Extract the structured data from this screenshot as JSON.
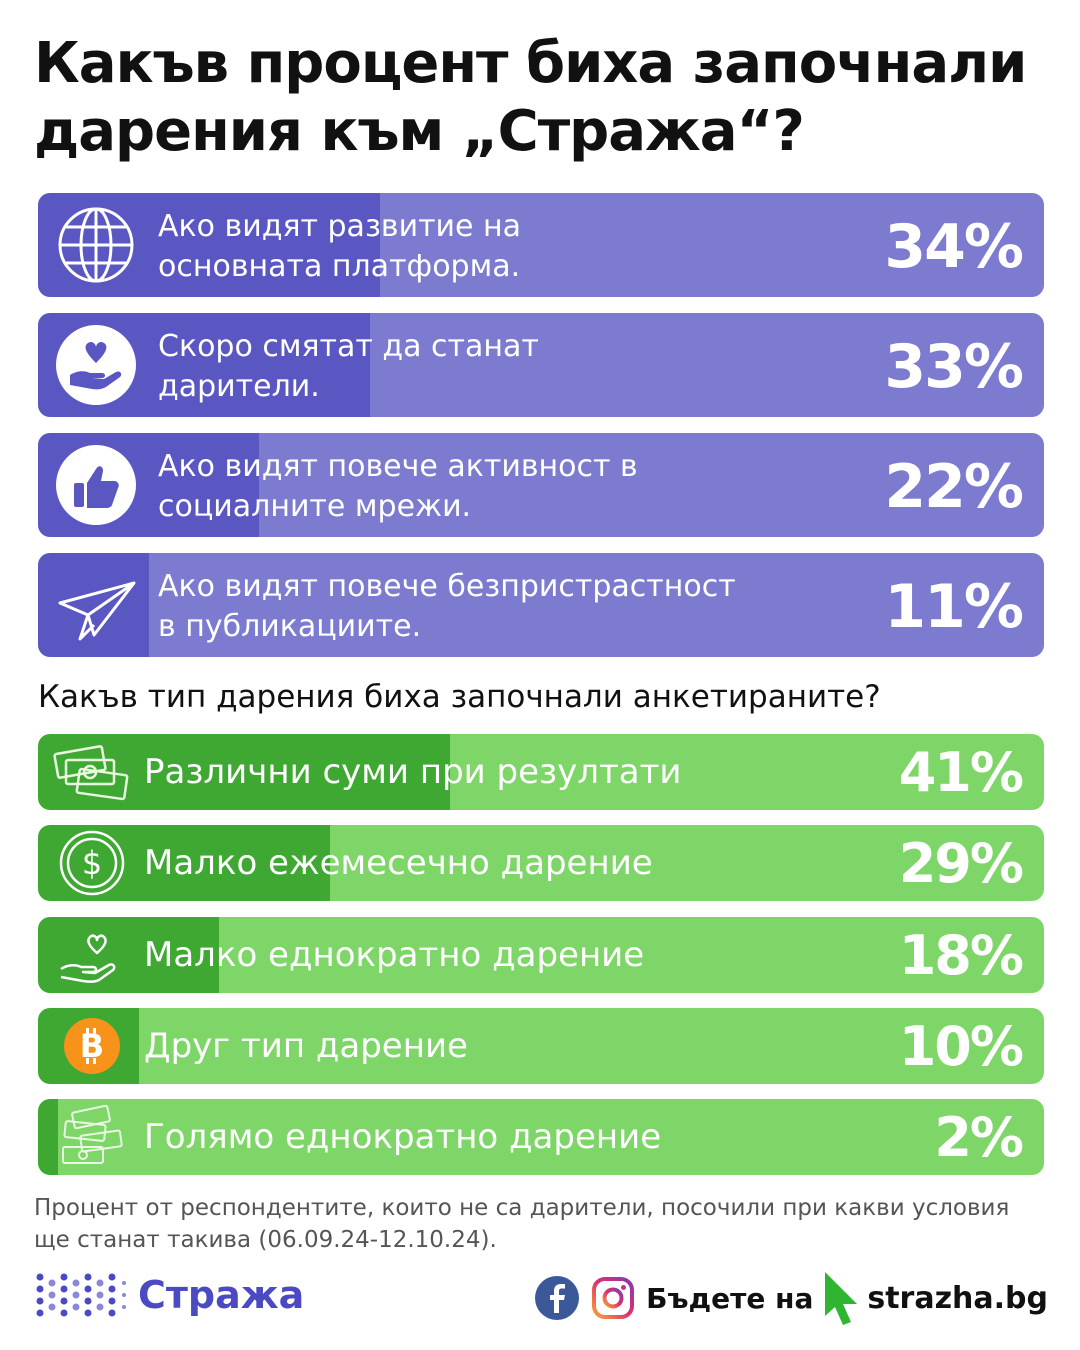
{
  "title": "Какъв процент биха започнали дарения към „Стража“?",
  "subtitle": "Какъв тип дарения биха започнали анкетираните?",
  "colors": {
    "purple_track": "#7c7bd0",
    "purple_fill": "#5a57c3",
    "green_track": "#7ed668",
    "green_fill": "#3ea832",
    "brand": "#4b4ac2",
    "bitcoin": "#f7931a",
    "facebook": "#3b5998",
    "cursor": "#2fb52f"
  },
  "chart_data": [
    {
      "type": "bar",
      "title": "Какъв процент биха започнали дарения към „Стража“?",
      "categories": [
        "Ако видят развитие на основната платформа.",
        "Скоро смятат да станат дарители.",
        "Ако видят повече активност в социалните мрежи.",
        "Ако видят повече безпристрастност в публикациите."
      ],
      "values": [
        34,
        33,
        22,
        11
      ],
      "value_labels": [
        "34%",
        "33%",
        "22%",
        "11%"
      ],
      "icons": [
        "globe-icon",
        "heart-hand-icon",
        "thumbs-up-icon",
        "paper-plane-icon"
      ],
      "lines": [
        [
          "Ако видят развитие на",
          "основната платформа."
        ],
        [
          "Скоро смятат да станат",
          "дарители."
        ],
        [
          "Ако видят повече активност в",
          "социалните мрежи."
        ],
        [
          "Ако видят повече безпристрастност",
          "в публикациите."
        ]
      ],
      "orientation": "horizontal",
      "xlim": [
        0,
        100
      ]
    },
    {
      "type": "bar",
      "title": "Какъв тип дарения биха започнали анкетираните?",
      "categories": [
        "Различни суми при резултати",
        "Малко ежемесечно дарение",
        "Малко еднократно дарение",
        "Друг тип дарение",
        "Голямо еднократно дарение"
      ],
      "values": [
        41,
        29,
        18,
        10,
        2
      ],
      "value_labels": [
        "41%",
        "29%",
        "18%",
        "10%",
        "2%"
      ],
      "icons": [
        "money-stack-icon",
        "dollar-coin-icon",
        "heart-hand-icon",
        "bitcoin-icon",
        "money-pile-icon"
      ],
      "orientation": "horizontal",
      "xlim": [
        0,
        100
      ]
    }
  ],
  "note": "Процент от респондентите, които не са дарители, посочили при какви условия ще станат такива (06.09.24-12.10.24).",
  "footer": {
    "brand": "Стража",
    "cta": "Бъдете на",
    "site": "strazha.bg"
  }
}
